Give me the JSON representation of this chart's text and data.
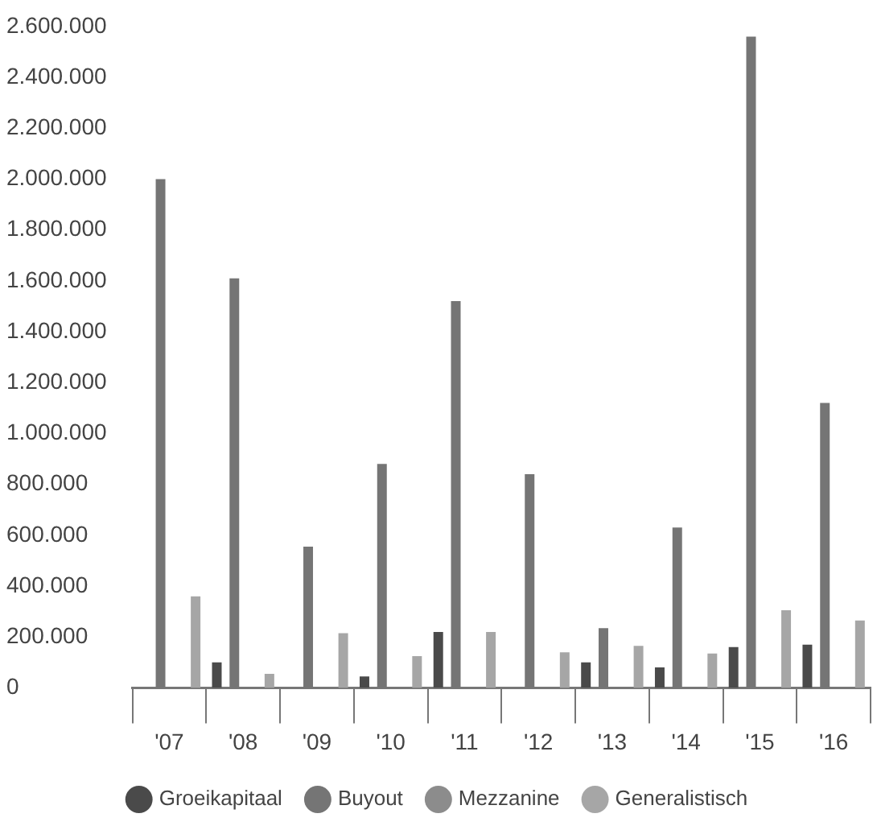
{
  "chart_data": {
    "type": "bar",
    "categories": [
      "'07",
      "'08",
      "'09",
      "'10",
      "'11",
      "'12",
      "'13",
      "'14",
      "'15",
      "'16"
    ],
    "series": [
      {
        "name": "Groeikapitaal",
        "color": "#4a4a4a",
        "values": [
          0,
          100000,
          0,
          45000,
          220000,
          0,
          100000,
          80000,
          160000,
          170000
        ]
      },
      {
        "name": "Buyout",
        "color": "#757575",
        "values": [
          2000000,
          1610000,
          555000,
          880000,
          1520000,
          840000,
          235000,
          630000,
          2560000,
          1120000
        ]
      },
      {
        "name": "Mezzanine",
        "color": "#8c8c8c",
        "values": [
          0,
          0,
          0,
          0,
          0,
          0,
          0,
          0,
          0,
          0
        ]
      },
      {
        "name": "Generalistisch",
        "color": "#a6a6a6",
        "values": [
          360000,
          55000,
          215000,
          125000,
          220000,
          140000,
          165000,
          135000,
          305000,
          265000
        ]
      }
    ],
    "ylim": [
      0,
      2600000
    ],
    "yticks": [
      {
        "value": 0,
        "label": "0"
      },
      {
        "value": 200000,
        "label": "200.000"
      },
      {
        "value": 400000,
        "label": "400.000"
      },
      {
        "value": 600000,
        "label": "600.000"
      },
      {
        "value": 800000,
        "label": "800.000"
      },
      {
        "value": 1000000,
        "label": "1.000.000"
      },
      {
        "value": 1200000,
        "label": "1.200.000"
      },
      {
        "value": 1400000,
        "label": "1.400.000"
      },
      {
        "value": 1600000,
        "label": "1.600.000"
      },
      {
        "value": 1800000,
        "label": "1.800.000"
      },
      {
        "value": 2000000,
        "label": "2.000.000"
      },
      {
        "value": 2200000,
        "label": "2.200.000"
      },
      {
        "value": 2400000,
        "label": "2.400.000"
      },
      {
        "value": 2600000,
        "label": "2.600.000"
      }
    ],
    "grid": false,
    "legend": "bottom"
  }
}
